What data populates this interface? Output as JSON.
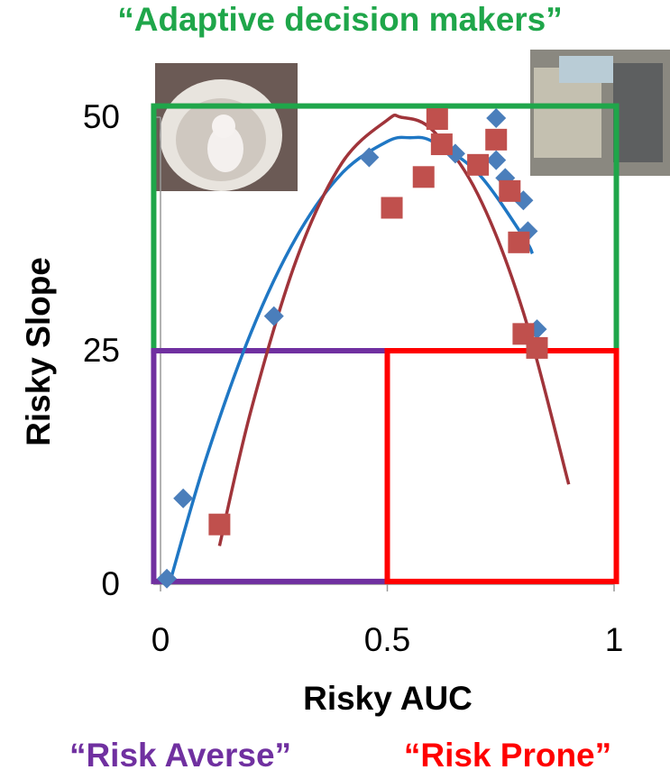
{
  "chart_data": {
    "type": "scatter",
    "x_label": "Risky AUC",
    "y_label": "Risky Slope",
    "xlim": [
      0,
      1
    ],
    "ylim": [
      0,
      50
    ],
    "xticks": [
      0,
      0.5,
      1
    ],
    "yticks": [
      0,
      25,
      50
    ],
    "series": [
      {
        "color": "#4a7ebb",
        "marker": "diamond",
        "x": [
          0.014,
          0.05,
          0.25,
          0.46,
          0.65,
          0.74,
          0.74,
          0.76,
          0.77,
          0.8,
          0.81,
          0.83
        ],
        "y": [
          0.6,
          9.2,
          28.7,
          45.7,
          46.1,
          49.9,
          45.4,
          43.5,
          42.3,
          41.1,
          37.8,
          27.3
        ]
      },
      {
        "color": "#c0504d",
        "marker": "square",
        "x": [
          0.13,
          0.51,
          0.58,
          0.61,
          0.62,
          0.7,
          0.74,
          0.77,
          0.79,
          0.8,
          0.83
        ],
        "y": [
          6.4,
          40.3,
          43.6,
          49.8,
          47.1,
          44.9,
          47.6,
          42.1,
          36.6,
          26.8,
          25.3
        ]
      }
    ],
    "trendlines": [
      {
        "color": "#1f77c4",
        "x": [
          0.02,
          0.1,
          0.2,
          0.3,
          0.4,
          0.5,
          0.55,
          0.6,
          0.7,
          0.8,
          0.82
        ],
        "y": [
          0.1,
          13.4,
          27.0,
          37.2,
          44.0,
          47.4,
          47.8,
          47.4,
          44.0,
          37.2,
          35.4
        ]
      },
      {
        "color": "#a0343a",
        "x": [
          0.13,
          0.2,
          0.3,
          0.4,
          0.5,
          0.53,
          0.6,
          0.7,
          0.8,
          0.9
        ],
        "y": [
          4.1,
          18.7,
          34.8,
          45.1,
          49.7,
          50,
          48.6,
          41.7,
          29.1,
          10.7
        ]
      }
    ],
    "regions": [
      {
        "label": "“Adaptive decision makers”",
        "color": "#1fa64a",
        "xlim": [
          -0.015,
          1.005
        ],
        "ylim": [
          25,
          51.2
        ]
      },
      {
        "label": "“Risk Averse”",
        "color": "#7030a0",
        "xlim": [
          -0.015,
          0.5
        ],
        "ylim": [
          0.3,
          25
        ]
      },
      {
        "label": "“Risk Prone”",
        "color": "#ff0000",
        "xlim": [
          0.5,
          1.005
        ],
        "ylim": [
          0.3,
          25
        ]
      }
    ]
  }
}
